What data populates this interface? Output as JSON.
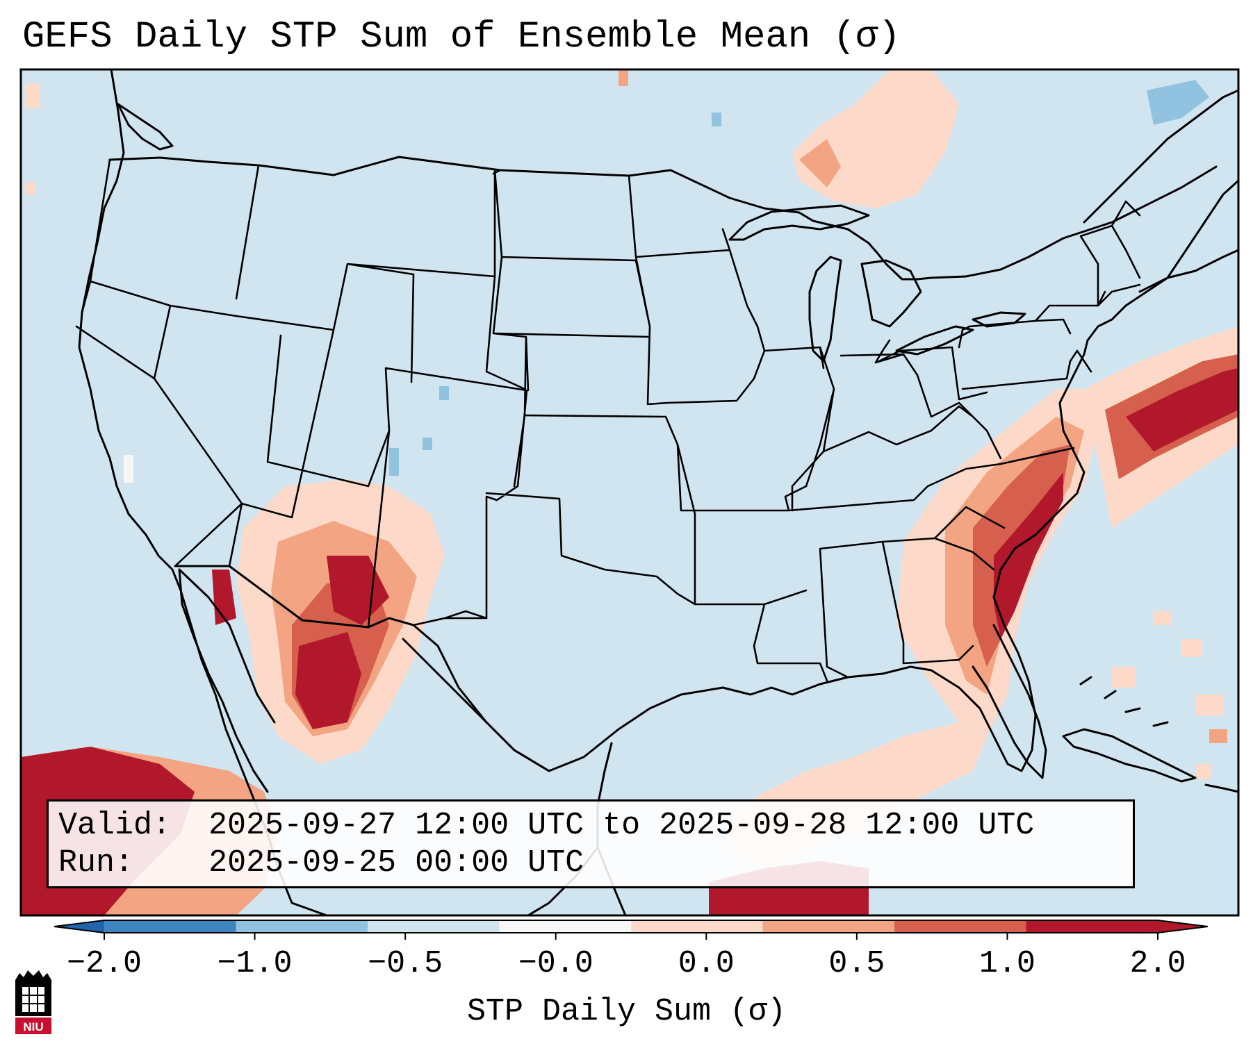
{
  "title": "GEFS Daily STP Sum of Ensemble Mean (σ)",
  "info": {
    "valid_label": "Valid:",
    "valid_value": "2025-09-27 12:00 UTC to 2025-09-28 12:00 UTC",
    "run_label": "Run:",
    "run_value": "2025-09-25 00:00 UTC"
  },
  "colorbar": {
    "label": "STP Daily Sum (σ)",
    "ticks": [
      "−2.0",
      "−1.0",
      "−0.5",
      "−0.0",
      "0.0",
      "0.5",
      "1.0",
      "2.0"
    ],
    "colors": [
      "#3d85c0",
      "#91c3e0",
      "#d1e5f1",
      "#f7f7f7",
      "#fcd9c8",
      "#f3a482",
      "#d6604d",
      "#b2182b"
    ],
    "extend_low_color": "#2166ac",
    "extend_high_color": "#b2182b"
  },
  "map": {
    "background_color": "#d1e5f1",
    "projection": "Lambert conformal, CONUS",
    "features": [
      "state borders",
      "country borders",
      "coastlines",
      "lakes"
    ],
    "high_stp_regions": [
      "Desert Southwest / Arizona-New Mexico",
      "Southeast coast Georgia-Carolinas",
      "Offshore mid-Atlantic",
      "Eastern Pacific"
    ]
  },
  "logo": {
    "text": "NIU",
    "name": "Northern Illinois University logo"
  }
}
